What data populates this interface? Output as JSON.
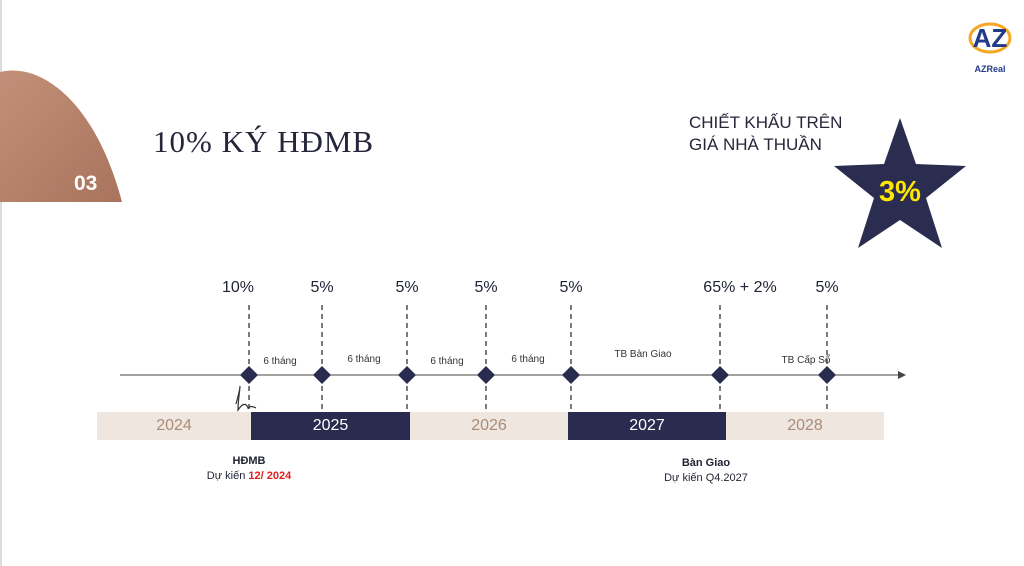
{
  "slide": {
    "number": "03",
    "title": "10% KÝ HĐMB",
    "discount_line1": "CHIẾT KHẤU TRÊN",
    "discount_line2": "GIÁ NHÀ THUẦN",
    "discount_value": "3%"
  },
  "brand": {
    "logo_letters": "AZ",
    "logo_name": "AZReal"
  },
  "timeline": {
    "milestones": [
      {
        "percent": "10%"
      },
      {
        "percent": "5%"
      },
      {
        "percent": "5%"
      },
      {
        "percent": "5%"
      },
      {
        "percent": "5%"
      },
      {
        "percent": "65% + 2%"
      },
      {
        "percent": "5%"
      }
    ],
    "intervals": [
      "6 tháng",
      "6 tháng",
      "6 tháng",
      "6 tháng",
      "TB Bàn Giao",
      "TB Cấp Sổ"
    ],
    "years": [
      "2024",
      "2025",
      "2026",
      "2027",
      "2028"
    ]
  },
  "notes": {
    "sign_title": "HĐMB",
    "sign_expected_prefix": "Dự kiến",
    "sign_expected_date": "12/ 2024",
    "handover_title": "Bàn Giao",
    "handover_expected": "Dự kiến Q4.2027"
  },
  "colors": {
    "accent_brown": "#b5826a",
    "navy": "#292b4f",
    "star_fill": "#2a2c50",
    "star_text": "#ffe600",
    "light_band": "#efe6df",
    "red": "#e0201c"
  }
}
